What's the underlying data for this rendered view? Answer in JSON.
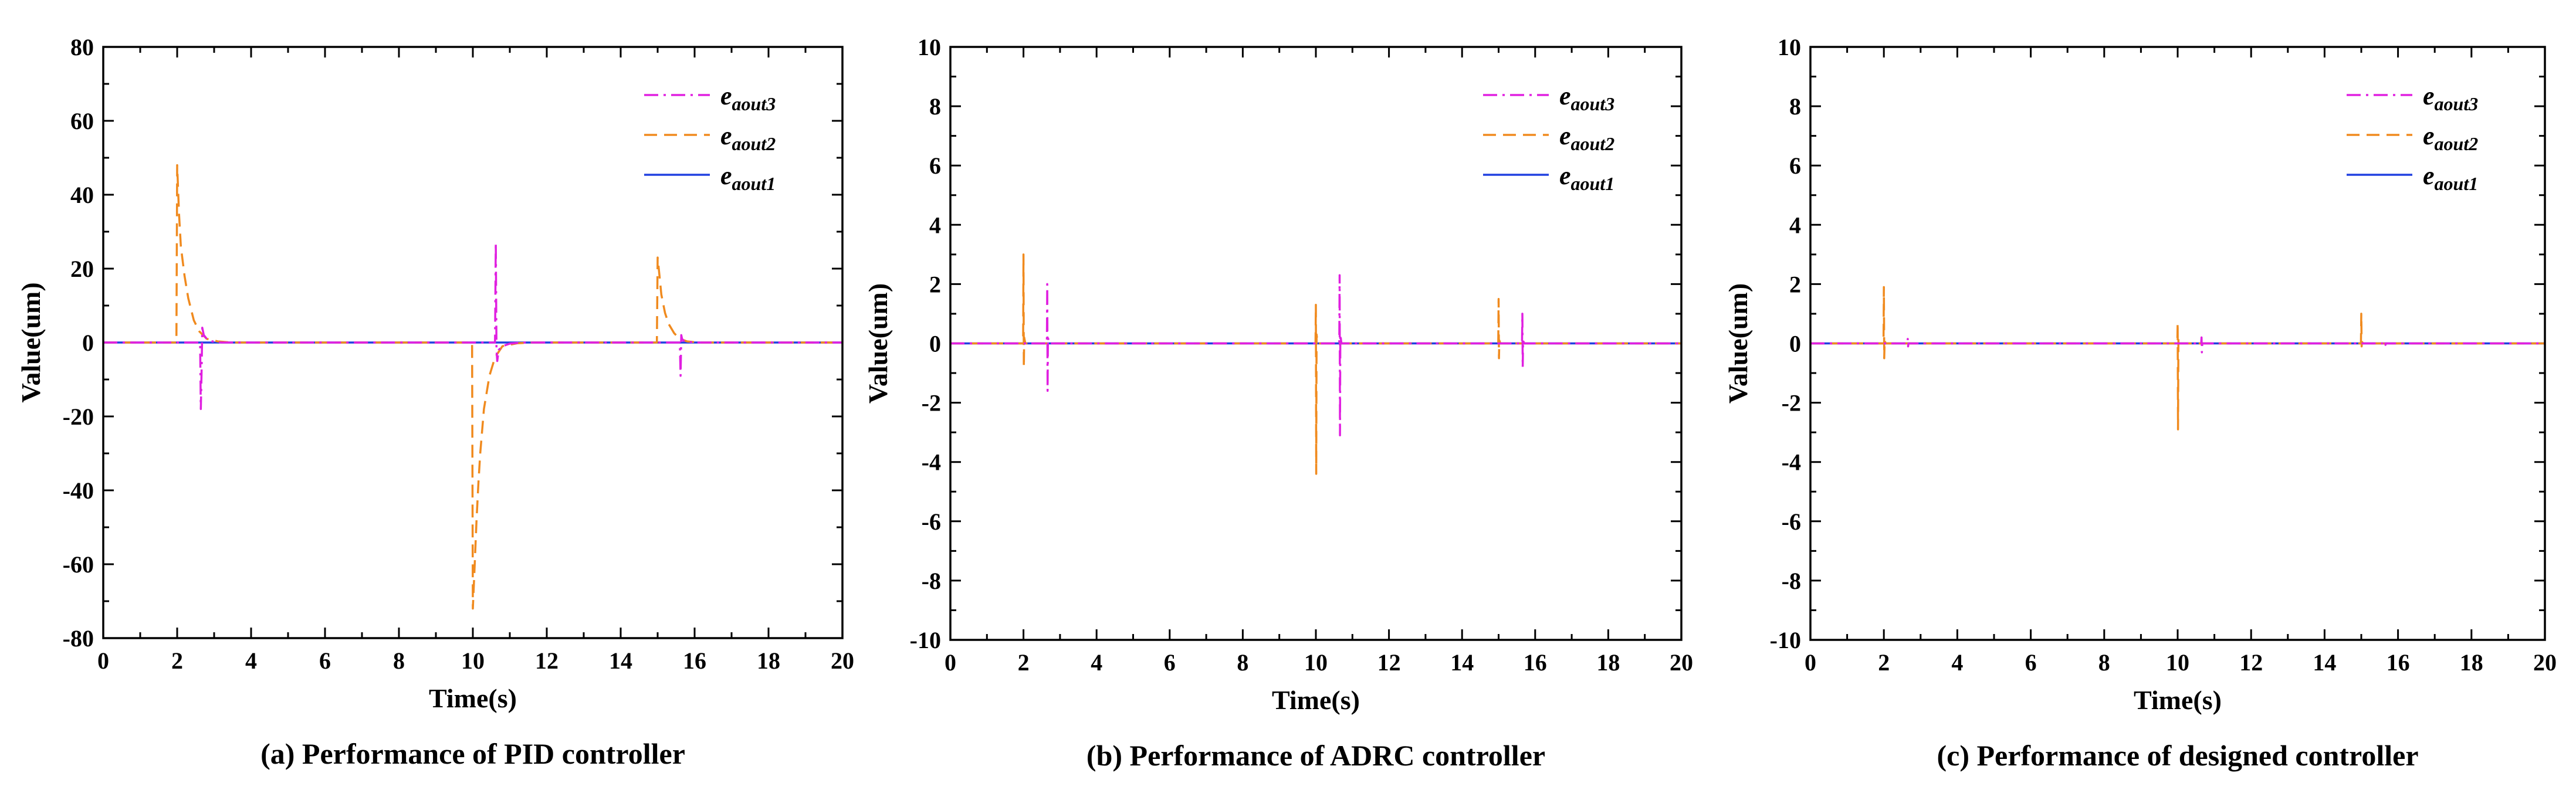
{
  "chart_data": [
    {
      "type": "line",
      "caption": "(a) Performance of PID controller",
      "xlabel": "Time(s)",
      "ylabel": "Value(um)",
      "xlim": [
        0,
        20
      ],
      "ylim": [
        -80,
        80
      ],
      "xticks": [
        0,
        2,
        4,
        6,
        8,
        10,
        12,
        14,
        16,
        18,
        20
      ],
      "yticks": [
        -80,
        -60,
        -40,
        -20,
        0,
        20,
        40,
        60,
        80
      ],
      "legend_position": "top-right",
      "series": [
        {
          "name": "e_aout3",
          "base": "e",
          "sub": "aout3",
          "color": "#e020e0",
          "dash": "dash-dot",
          "x": [
            0,
            2.62,
            2.64,
            2.66,
            2.68,
            2.72,
            2.8,
            2.95,
            3.2,
            10.5,
            10.6,
            10.62,
            10.64,
            10.66,
            10.7,
            10.8,
            11.0,
            11.3,
            15.5,
            15.6,
            15.62,
            15.64,
            15.66,
            15.7,
            15.8,
            16.0,
            20
          ],
          "y": [
            0,
            0,
            -18,
            -8,
            4,
            2,
            1,
            0.3,
            0,
            0,
            0,
            27,
            -2,
            -5,
            -2,
            -1,
            -0.3,
            0,
            0,
            0,
            -9,
            2,
            1,
            0.5,
            0.2,
            0,
            0
          ]
        },
        {
          "name": "e_aout2",
          "base": "e",
          "sub": "aout2",
          "color": "#f08a1e",
          "dash": "dashed",
          "x": [
            0,
            1.98,
            2.0,
            2.05,
            2.1,
            2.2,
            2.3,
            2.45,
            2.6,
            2.8,
            3.1,
            3.5,
            9.98,
            10.0,
            10.05,
            10.1,
            10.15,
            10.2,
            10.3,
            10.45,
            10.6,
            10.8,
            11.2,
            11.6,
            14.98,
            15.0,
            15.05,
            15.1,
            15.2,
            15.3,
            15.45,
            15.6,
            15.8,
            16.1,
            20
          ],
          "y": [
            0,
            0,
            48,
            35,
            26,
            18,
            12,
            6,
            3,
            1,
            0.3,
            0,
            0,
            -72,
            -60,
            -48,
            -38,
            -30,
            -18,
            -9,
            -4,
            -1,
            -0.2,
            0,
            0,
            23,
            18,
            13,
            8,
            5,
            2.5,
            1,
            0.3,
            0,
            0
          ]
        },
        {
          "name": "e_aout1",
          "base": "e",
          "sub": "aout1",
          "color": "#2040e0",
          "dash": "solid",
          "x": [
            0,
            20
          ],
          "y": [
            0,
            0
          ]
        }
      ]
    },
    {
      "type": "line",
      "caption": "(b) Performance of ADRC controller",
      "xlabel": "Time(s)",
      "ylabel": "Value(um)",
      "xlim": [
        0,
        20
      ],
      "ylim": [
        -10,
        10
      ],
      "xticks": [
        0,
        2,
        4,
        6,
        8,
        10,
        12,
        14,
        16,
        18,
        20
      ],
      "yticks": [
        -10,
        -8,
        -6,
        -4,
        -2,
        0,
        2,
        4,
        6,
        8,
        10
      ],
      "legend_position": "top-right",
      "series": [
        {
          "name": "e_aout3",
          "base": "e",
          "sub": "aout3",
          "color": "#e020e0",
          "dash": "dash-dot",
          "x": [
            0,
            2.64,
            2.65,
            2.66,
            2.67,
            2.7,
            10.64,
            10.65,
            10.66,
            10.67,
            10.7,
            15.64,
            15.65,
            15.66,
            15.67,
            15.7,
            20
          ],
          "y": [
            0,
            0,
            2,
            -1.6,
            0.2,
            0,
            0,
            2.3,
            -3.1,
            0.3,
            0,
            0,
            1.0,
            -0.8,
            0.1,
            0,
            0
          ]
        },
        {
          "name": "e_aout2",
          "base": "e",
          "sub": "aout2",
          "color": "#f08a1e",
          "dash": "dashed",
          "x": [
            0,
            1.99,
            2.0,
            2.01,
            2.02,
            2.05,
            9.99,
            10.0,
            10.01,
            10.02,
            10.05,
            14.99,
            15.0,
            15.01,
            15.02,
            15.05,
            20
          ],
          "y": [
            0,
            0,
            3.0,
            -0.8,
            0.2,
            0,
            0,
            1.3,
            -4.4,
            0.3,
            0,
            0,
            1.5,
            -0.5,
            0.1,
            0,
            0
          ]
        },
        {
          "name": "e_aout1",
          "base": "e",
          "sub": "aout1",
          "color": "#2040e0",
          "dash": "solid",
          "x": [
            0,
            20
          ],
          "y": [
            0,
            0
          ]
        }
      ]
    },
    {
      "type": "line",
      "caption": "(c) Performance of designed controller",
      "xlabel": "Time(s)",
      "ylabel": "Value(um)",
      "xlim": [
        0,
        20
      ],
      "ylim": [
        -10,
        10
      ],
      "xticks": [
        0,
        2,
        4,
        6,
        8,
        10,
        12,
        14,
        16,
        18,
        20
      ],
      "yticks": [
        -10,
        -8,
        -6,
        -4,
        -2,
        0,
        2,
        4,
        6,
        8,
        10
      ],
      "legend_position": "top-right",
      "series": [
        {
          "name": "e_aout3",
          "base": "e",
          "sub": "aout3",
          "color": "#e020e0",
          "dash": "dash-dot",
          "x": [
            0,
            2.64,
            2.65,
            2.66,
            2.67,
            2.7,
            10.64,
            10.65,
            10.66,
            10.67,
            10.7,
            15.64,
            15.65,
            15.66,
            15.67,
            15.7,
            20
          ],
          "y": [
            0,
            0,
            0.15,
            -0.1,
            0,
            0,
            0,
            0.2,
            -0.3,
            0,
            0,
            0,
            0.08,
            -0.05,
            0,
            0,
            0
          ]
        },
        {
          "name": "e_aout2",
          "base": "e",
          "sub": "aout2",
          "color": "#f08a1e",
          "dash": "dashed",
          "x": [
            0,
            1.99,
            2.0,
            2.01,
            2.02,
            2.05,
            9.99,
            10.0,
            10.01,
            10.02,
            10.05,
            14.99,
            15.0,
            15.01,
            15.02,
            15.05,
            20
          ],
          "y": [
            0,
            0,
            1.9,
            -0.5,
            0.1,
            0,
            0,
            0.7,
            -2.9,
            0.2,
            0,
            0,
            1.0,
            -0.1,
            0.05,
            0,
            0
          ]
        },
        {
          "name": "e_aout1",
          "base": "e",
          "sub": "aout1",
          "color": "#2040e0",
          "dash": "solid",
          "x": [
            0,
            20
          ],
          "y": [
            0,
            0
          ]
        }
      ]
    }
  ]
}
